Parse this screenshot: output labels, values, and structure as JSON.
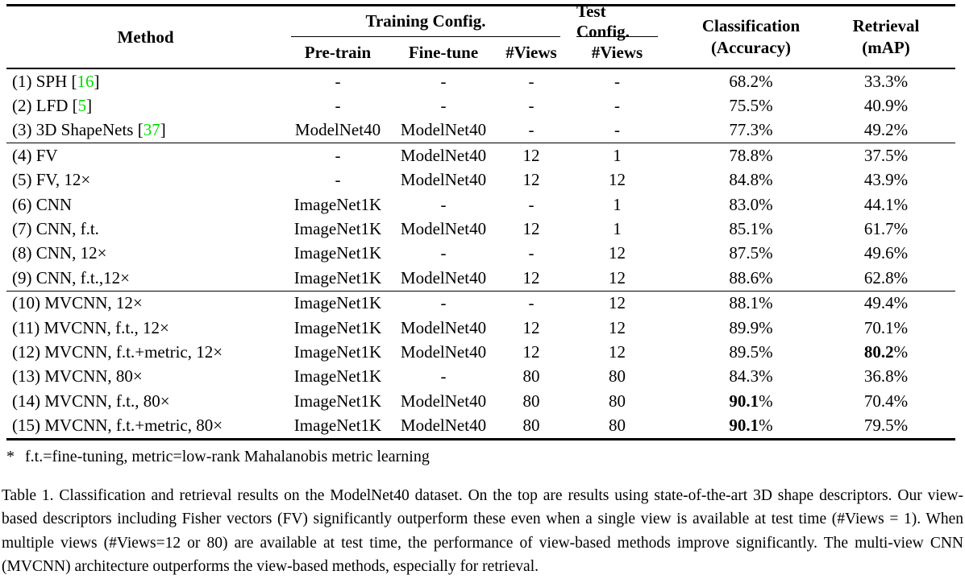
{
  "colors": {
    "citation": "#00dd00"
  },
  "header": {
    "method": "Method",
    "training_group": "Training Config.",
    "test_group": "Test Config.",
    "pretrain": "Pre-train",
    "finetune": "Fine-tune",
    "views_train": "#Views",
    "views_test": "#Views",
    "classification": [
      "Classification",
      "(Accuracy)"
    ],
    "retrieval": [
      "Retrieval",
      "(mAP)"
    ]
  },
  "groups": [
    {
      "rows": [
        {
          "cells": [
            "(1) SPH [16]",
            "-",
            "-",
            "-",
            "-",
            "68.2%",
            "33.3%"
          ],
          "bold": []
        },
        {
          "cells": [
            "(2) LFD [5]",
            "-",
            "-",
            "-",
            "-",
            "75.5%",
            "40.9%"
          ],
          "bold": []
        },
        {
          "cells": [
            "(3) 3D ShapeNets [37]",
            "ModelNet40",
            "ModelNet40",
            "-",
            "-",
            "77.3%",
            "49.2%"
          ],
          "bold": []
        }
      ]
    },
    {
      "rows": [
        {
          "cells": [
            "(4) FV",
            "-",
            "ModelNet40",
            "12",
            "1",
            "78.8%",
            "37.5%"
          ],
          "bold": []
        },
        {
          "cells": [
            "(5) FV, 12×",
            "-",
            "ModelNet40",
            "12",
            "12",
            "84.8%",
            "43.9%"
          ],
          "bold": []
        },
        {
          "cells": [
            "(6) CNN",
            "ImageNet1K",
            "-",
            "-",
            "1",
            "83.0%",
            "44.1%"
          ],
          "bold": []
        },
        {
          "cells": [
            "(7) CNN, f.t.",
            "ImageNet1K",
            "ModelNet40",
            "12",
            "1",
            "85.1%",
            "61.7%"
          ],
          "bold": []
        },
        {
          "cells": [
            "(8) CNN, 12×",
            "ImageNet1K",
            "-",
            "-",
            "12",
            "87.5%",
            "49.6%"
          ],
          "bold": []
        },
        {
          "cells": [
            "(9) CNN, f.t.,12×",
            "ImageNet1K",
            "ModelNet40",
            "12",
            "12",
            "88.6%",
            "62.8%"
          ],
          "bold": []
        }
      ]
    },
    {
      "rows": [
        {
          "cells": [
            "(10) MVCNN, 12×",
            "ImageNet1K",
            "-",
            "-",
            "12",
            "88.1%",
            "49.4%"
          ],
          "bold": []
        },
        {
          "cells": [
            "(11) MVCNN, f.t., 12×",
            "ImageNet1K",
            "ModelNet40",
            "12",
            "12",
            "89.9%",
            "70.1%"
          ],
          "bold": []
        },
        {
          "cells": [
            "(12) MVCNN, f.t.+metric, 12×",
            "ImageNet1K",
            "ModelNet40",
            "12",
            "12",
            "89.5%",
            "80.2%"
          ],
          "bold": [
            6
          ]
        },
        {
          "cells": [
            "(13) MVCNN, 80×",
            "ImageNet1K",
            "-",
            "80",
            "80",
            "84.3%",
            "36.8%"
          ],
          "bold": []
        },
        {
          "cells": [
            "(14) MVCNN, f.t., 80×",
            "ImageNet1K",
            "ModelNet40",
            "80",
            "80",
            "90.1%",
            "70.4%"
          ],
          "bold": [
            5
          ]
        },
        {
          "cells": [
            "(15) MVCNN, f.t.+metric, 80×",
            "ImageNet1K",
            "ModelNet40",
            "80",
            "80",
            "90.1%",
            "79.5%"
          ],
          "bold": [
            5
          ]
        }
      ]
    }
  ],
  "footnote": {
    "marker": "*",
    "text": "f.t.=fine-tuning, metric=low-rank Mahalanobis metric learning"
  },
  "caption": "Table 1. Classification and retrieval results on the ModelNet40 dataset. On the top are results using state-of-the-art 3D shape descriptors. Our view-based descriptors including Fisher vectors (FV) significantly outperform these even when a single view is available at test time (#Views = 1). When multiple views (#Views=12 or 80) are available at test time, the performance of view-based methods improve significantly. The multi-view CNN (MVCNN) architecture outperforms the view-based methods, especially for retrieval."
}
